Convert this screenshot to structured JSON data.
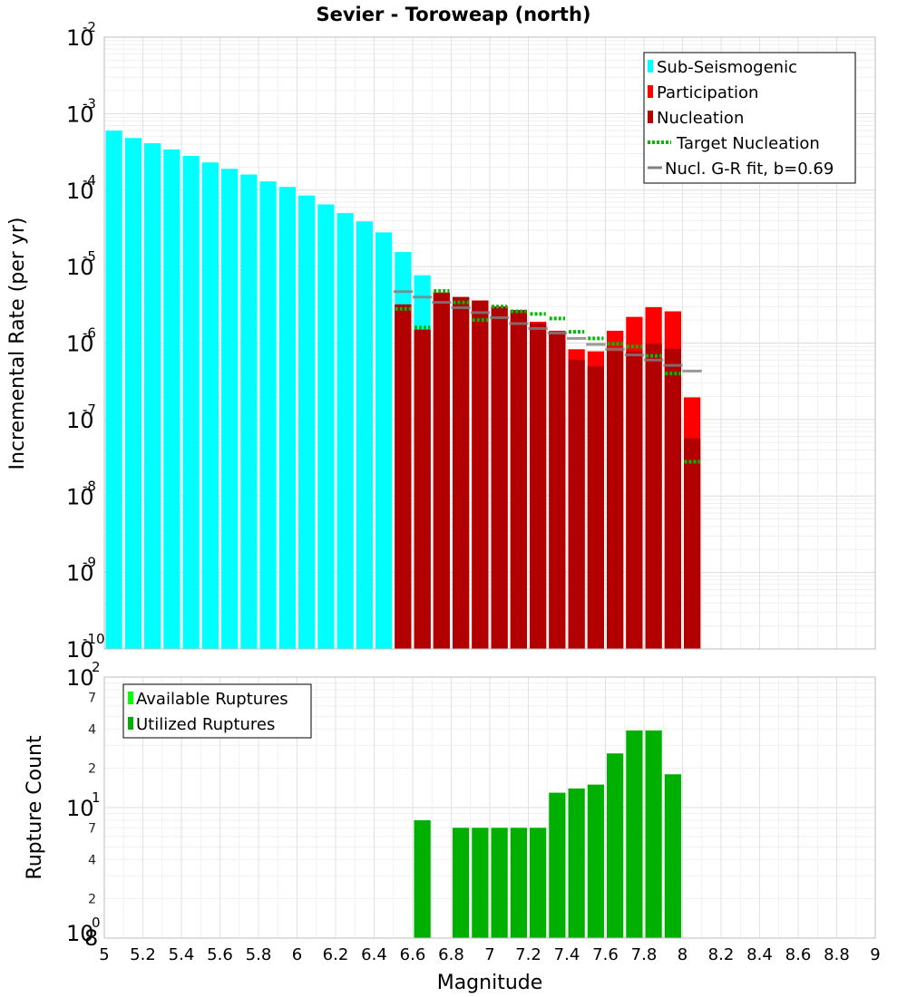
{
  "chart_data": [
    {
      "type": "bar",
      "title": "Sevier - Toroweap (north)",
      "xlabel": "",
      "ylabel": "Incremental Rate (per yr)",
      "yscale": "log",
      "ylim_exponents": [
        -10,
        -2
      ],
      "xlim": [
        5,
        9
      ],
      "legend_position": "top-right",
      "legend": [
        {
          "label": "Sub-Seismogenic",
          "color": "#00ffff",
          "style": "bar"
        },
        {
          "label": "Participation",
          "color": "#ff0000",
          "style": "bar"
        },
        {
          "label": "Nucleation",
          "color": "#b20000",
          "style": "bar"
        },
        {
          "label": "Target Nucleation",
          "color": "#00bb00",
          "style": "dotted"
        },
        {
          "label": "Nucl. G-R fit, b=0.69",
          "color": "#808080",
          "style": "line"
        }
      ],
      "bar_width": 0.1,
      "sub_seismogenic": {
        "x": [
          5.05,
          5.15,
          5.25,
          5.35,
          5.45,
          5.55,
          5.65,
          5.75,
          5.85,
          5.95,
          6.05,
          6.15,
          6.25,
          6.35,
          6.45,
          6.55,
          6.65
        ],
        "values": [
          0.0006,
          0.00048,
          0.00041,
          0.00034,
          0.00028,
          0.00023,
          0.00019,
          0.00016,
          0.00013,
          0.00011,
          8.5e-05,
          6.5e-05,
          5e-05,
          3.9e-05,
          2.8e-05,
          1.55e-05,
          7.7e-06
        ]
      },
      "participation": {
        "x": [
          6.55,
          6.65,
          6.75,
          6.85,
          6.95,
          7.05,
          7.15,
          7.25,
          7.35,
          7.45,
          7.55,
          7.65,
          7.75,
          7.85,
          7.95,
          8.05
        ],
        "values": [
          3.2e-06,
          1.5e-06,
          4.6e-06,
          4e-06,
          3.6e-06,
          3e-06,
          2.7e-06,
          1.9e-06,
          1.45e-06,
          8.3e-07,
          7.8e-07,
          1.45e-06,
          2.2e-06,
          2.95e-06,
          2.6e-06,
          1.95e-07
        ]
      },
      "nucleation": {
        "x": [
          6.55,
          6.65,
          6.75,
          6.85,
          6.95,
          7.05,
          7.15,
          7.25,
          7.35,
          7.45,
          7.55,
          7.65,
          7.75,
          7.85,
          7.95,
          8.05
        ],
        "values": [
          3.2e-06,
          1.5e-06,
          4.5e-06,
          4e-06,
          3.6e-06,
          3e-06,
          2.7e-06,
          1.8e-06,
          1.4e-06,
          6e-07,
          5e-07,
          7.8e-07,
          7.8e-07,
          9.8e-07,
          8.4e-07,
          5.7e-08
        ]
      },
      "target_nucleation": {
        "x": [
          6.55,
          6.65,
          6.75,
          6.85,
          6.95,
          7.05,
          7.15,
          7.25,
          7.35,
          7.45,
          7.55,
          7.65,
          7.75,
          7.85,
          7.95,
          8.05
        ],
        "values": [
          2.8e-06,
          1.6e-06,
          4.8e-06,
          3.4e-06,
          2e-06,
          3e-06,
          2.6e-06,
          2.4e-06,
          2.1e-06,
          1.4e-06,
          1.15e-06,
          9.8e-07,
          9e-07,
          6.8e-07,
          4e-07,
          2.8e-08
        ]
      },
      "gr_fit": {
        "x": [
          6.55,
          6.65,
          6.75,
          6.85,
          6.95,
          7.05,
          7.15,
          7.25,
          7.35,
          7.45,
          7.55,
          7.65,
          7.75,
          7.85,
          7.95,
          8.05
        ],
        "values": [
          4.7e-06,
          4e-06,
          3.4e-06,
          2.9e-06,
          2.5e-06,
          2.15e-06,
          1.8e-06,
          1.55e-06,
          1.35e-06,
          1.15e-06,
          9.6e-07,
          8.3e-07,
          7e-07,
          6e-07,
          5.1e-07,
          4.3e-07
        ]
      }
    },
    {
      "type": "bar",
      "ylabel": "Rupture Count",
      "xlabel": "Magnitude",
      "yscale": "log",
      "ylim_exponents": [
        0,
        2
      ],
      "xlim": [
        5,
        9
      ],
      "x_ticks": [
        "5",
        "5.2",
        "5.4",
        "5.6",
        "5.8",
        "6",
        "6.2",
        "6.4",
        "6.6",
        "6.8",
        "7",
        "7.2",
        "7.4",
        "7.6",
        "7.8",
        "8",
        "8.2",
        "8.4",
        "8.6",
        "8.8",
        "9"
      ],
      "legend_position": "top-left",
      "legend": [
        {
          "label": "Available Ruptures",
          "color": "#00ff00",
          "style": "bar"
        },
        {
          "label": "Utilized Ruptures",
          "color": "#00b000",
          "style": "bar"
        }
      ],
      "utilized_ruptures": {
        "x": [
          6.65,
          6.85,
          6.95,
          7.05,
          7.15,
          7.25,
          7.35,
          7.45,
          7.55,
          7.65,
          7.75,
          7.85,
          7.95
        ],
        "values": [
          8,
          7,
          7,
          7,
          7,
          7,
          13,
          14,
          15,
          26,
          39,
          39,
          18
        ]
      },
      "minor_tick_labels": [
        "2",
        "4",
        "7",
        "8"
      ]
    }
  ]
}
